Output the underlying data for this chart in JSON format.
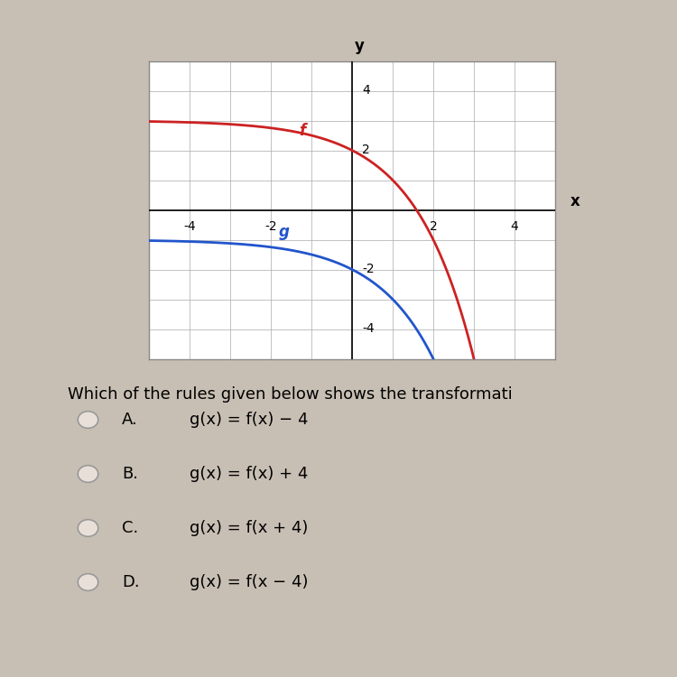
{
  "bg_color": "#c8bfb4",
  "graph_bg": "#ffffff",
  "graph_border": "#888888",
  "xlim": [
    -5,
    5
  ],
  "ylim": [
    -5,
    5
  ],
  "xtick_vals": [
    -4,
    -2,
    2,
    4
  ],
  "ytick_vals": [
    4,
    2,
    -2,
    -4
  ],
  "f_color": "#cc2222",
  "g_color": "#2255cc",
  "f_label": "f",
  "g_label": "g",
  "question_text": "Which of the rules given below shows the transformati",
  "options": [
    {
      "label": "A.",
      "text": "g(x) = f(x) − 4"
    },
    {
      "label": "B.",
      "text": "g(x) = f(x) + 4"
    },
    {
      "label": "C.",
      "text": "g(x) = f(x + 4)"
    },
    {
      "label": "D.",
      "text": "g(x) = f(x − 4)"
    }
  ],
  "font_size_options": 13,
  "font_size_question": 13,
  "tick_fontsize": 10,
  "axis_label_fontsize": 12
}
